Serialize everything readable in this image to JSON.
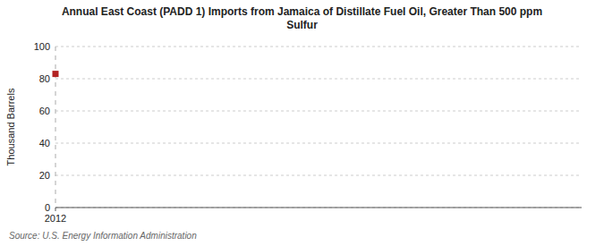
{
  "chart_data": {
    "type": "scatter",
    "title": "Annual East Coast (PADD 1) Imports from Jamaica of Distillate Fuel Oil, Greater Than 500 ppm\nSulfur",
    "ylabel": "Thousand Barrels",
    "annotations": [
      "Source: U.S. Energy Information Administration"
    ],
    "x": [
      2012
    ],
    "values": [
      83
    ],
    "color": "#b22222",
    "marker": "square",
    "xlim": [
      2012,
      2022
    ],
    "xticks": [
      2012
    ],
    "ylim": [
      0,
      100
    ],
    "yticks": [
      0,
      20,
      40,
      60,
      80,
      100
    ],
    "grid": true
  }
}
